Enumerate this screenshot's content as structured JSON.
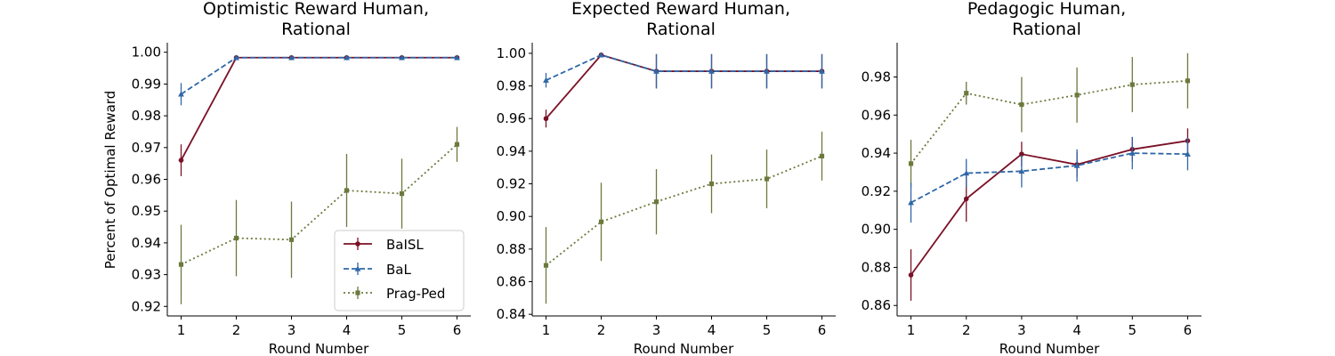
{
  "colors": {
    "BaISL": "#7b1126",
    "BaL": "#2f67a6",
    "Prag-Ped": "#6b7a3c"
  },
  "legend": [
    "BaISL",
    "BaL",
    "Prag-Ped"
  ],
  "legend_placement": "lower-right of first panel",
  "chart_data": [
    {
      "type": "line",
      "title": "Optimistic Reward Human,\nRational",
      "xlabel": "Round Number",
      "ylabel": "Percent of Optimal Reward",
      "x": [
        1,
        2,
        3,
        4,
        5,
        6
      ],
      "xticks": [
        "1",
        "2",
        "3",
        "4",
        "5",
        "6"
      ],
      "ylim": [
        0.917,
        1.003
      ],
      "yticks": [
        "0.92",
        "0.93",
        "0.94",
        "0.95",
        "0.96",
        "0.97",
        "0.98",
        "0.99",
        "1.00"
      ],
      "ytick_values": [
        0.92,
        0.93,
        0.94,
        0.95,
        0.96,
        0.97,
        0.98,
        0.99,
        1.0
      ],
      "legend": true,
      "series": [
        {
          "name": "BaISL",
          "style": "solid",
          "marker": "circle",
          "values": [
            0.966,
            0.9983,
            0.9983,
            0.9983,
            0.9983,
            0.9983
          ],
          "err": [
            0.005,
            0.0006,
            0.0005,
            0.0005,
            0.0005,
            0.0005
          ]
        },
        {
          "name": "BaL",
          "style": "dashed",
          "marker": "triangle",
          "values": [
            0.9868,
            0.9983,
            0.9983,
            0.9983,
            0.9983,
            0.9983
          ],
          "err": [
            0.0035,
            0.0006,
            0.0005,
            0.0005,
            0.0005,
            0.0005
          ]
        },
        {
          "name": "Prag-Ped",
          "style": "dotted",
          "marker": "square",
          "values": [
            0.9332,
            0.9415,
            0.941,
            0.9565,
            0.9555,
            0.971
          ],
          "err": [
            0.0125,
            0.012,
            0.012,
            0.0115,
            0.011,
            0.0055
          ]
        }
      ]
    },
    {
      "type": "line",
      "title": "Expected Reward Human,\nRational",
      "xlabel": "Round Number",
      "ylabel": "",
      "x": [
        1,
        2,
        3,
        4,
        5,
        6
      ],
      "xticks": [
        "1",
        "2",
        "3",
        "4",
        "5",
        "6"
      ],
      "ylim": [
        0.839,
        1.0065
      ],
      "yticks": [
        "0.84",
        "0.86",
        "0.88",
        "0.90",
        "0.92",
        "0.94",
        "0.96",
        "0.98",
        "1.00"
      ],
      "ytick_values": [
        0.84,
        0.86,
        0.88,
        0.9,
        0.92,
        0.94,
        0.96,
        0.98,
        1.0
      ],
      "legend": false,
      "series": [
        {
          "name": "BaISL",
          "style": "solid",
          "marker": "circle",
          "values": [
            0.96,
            0.999,
            0.989,
            0.989,
            0.989,
            0.989
          ],
          "err": [
            0.0055,
            0.001,
            0.0105,
            0.0105,
            0.0105,
            0.0105
          ]
        },
        {
          "name": "BaL",
          "style": "dashed",
          "marker": "triangle",
          "values": [
            0.9835,
            0.999,
            0.989,
            0.989,
            0.989,
            0.989
          ],
          "err": [
            0.0045,
            0.001,
            0.0105,
            0.0105,
            0.0105,
            0.0105
          ]
        },
        {
          "name": "Prag-Ped",
          "style": "dotted",
          "marker": "square",
          "values": [
            0.87,
            0.8967,
            0.909,
            0.92,
            0.923,
            0.937
          ],
          "err": [
            0.0235,
            0.024,
            0.02,
            0.018,
            0.018,
            0.015
          ]
        }
      ]
    },
    {
      "type": "line",
      "title": "Pedagogic Human,\nRational",
      "xlabel": "Round Number",
      "ylabel": "",
      "x": [
        1,
        2,
        3,
        4,
        5,
        6
      ],
      "xticks": [
        "1",
        "2",
        "3",
        "4",
        "5",
        "6"
      ],
      "ylim": [
        0.8545,
        0.998
      ],
      "yticks": [
        "0.86",
        "0.88",
        "0.90",
        "0.92",
        "0.94",
        "0.96",
        "0.98"
      ],
      "ytick_values": [
        0.86,
        0.88,
        0.9,
        0.92,
        0.94,
        0.96,
        0.98
      ],
      "legend": false,
      "series": [
        {
          "name": "BaISL",
          "style": "solid",
          "marker": "circle",
          "values": [
            0.876,
            0.916,
            0.9395,
            0.934,
            0.942,
            0.9465
          ],
          "err": [
            0.0135,
            0.012,
            0.0065,
            0.0065,
            0.0065,
            0.0065
          ]
        },
        {
          "name": "BaL",
          "style": "dashed",
          "marker": "triangle",
          "values": [
            0.914,
            0.9295,
            0.9305,
            0.9335,
            0.94,
            0.9395
          ],
          "err": [
            0.0105,
            0.0075,
            0.0085,
            0.0085,
            0.0085,
            0.0085
          ]
        },
        {
          "name": "Prag-Ped",
          "style": "dotted",
          "marker": "square",
          "values": [
            0.9345,
            0.9715,
            0.9655,
            0.9705,
            0.976,
            0.978
          ],
          "err": [
            0.0125,
            0.006,
            0.0145,
            0.0145,
            0.0145,
            0.0145
          ]
        }
      ]
    }
  ]
}
